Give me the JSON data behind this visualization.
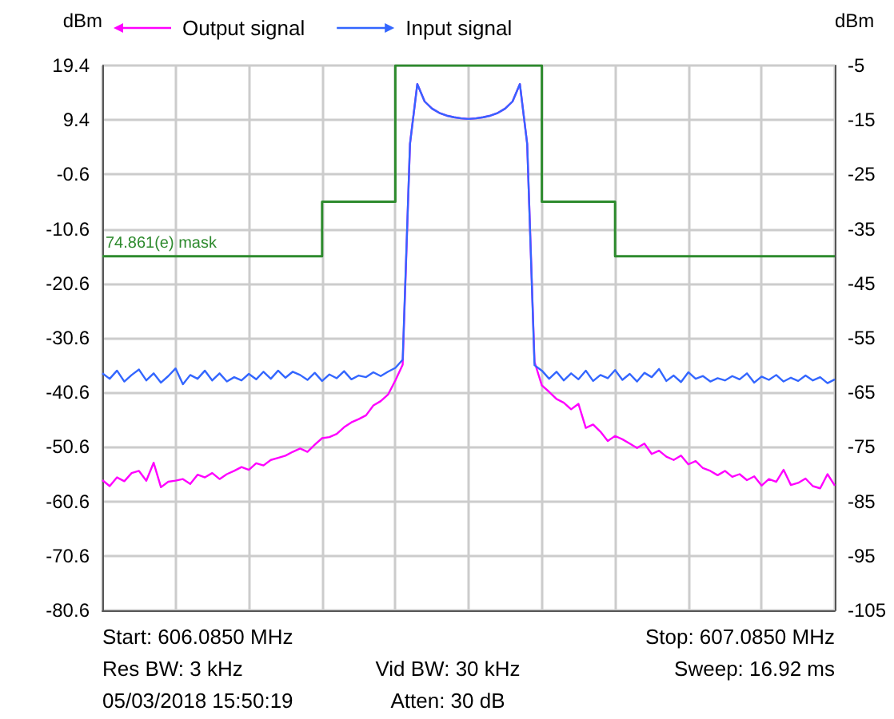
{
  "chart_data": {
    "type": "line",
    "ylabel": "dBm",
    "y2label": "dBm",
    "legend": "top left",
    "grid": true,
    "tick_labels": "y",
    "categories": [
      null,
      null,
      null,
      null,
      null,
      null,
      null,
      null,
      null,
      null,
      null,
      null,
      null,
      null,
      null,
      null,
      null,
      null,
      null,
      null,
      null,
      null,
      null,
      null,
      null,
      null,
      null,
      null,
      null,
      null,
      null,
      null,
      null,
      null,
      null,
      null,
      null,
      null,
      null,
      null,
      null,
      null,
      null,
      null,
      null,
      null,
      null,
      null,
      null,
      null,
      null,
      null,
      null,
      null,
      null,
      null,
      null,
      null,
      null,
      null,
      null,
      null,
      null,
      null,
      null,
      null,
      null,
      null,
      null,
      null,
      null,
      null,
      null,
      null,
      null,
      null,
      null,
      null,
      null,
      null,
      null,
      null,
      null,
      null,
      null,
      null,
      null,
      null,
      null,
      null,
      null,
      null,
      null,
      null,
      null,
      null,
      null,
      null,
      null,
      null,
      null
    ],
    "ylim": [
      -80.6,
      19.4
    ],
    "yticks": [
      19.4,
      9.4,
      -0.6,
      -10.6,
      -20.6,
      -30.6,
      -40.6,
      -50.6,
      -60.6,
      -70.6,
      -80.6
    ],
    "y2lim": [
      -105,
      -5
    ],
    "y2ticks": [
      -5,
      -15,
      -25,
      -35,
      -45,
      -55,
      -65,
      -75,
      -85,
      -95,
      -105
    ],
    "series": [
      {
        "name": "74.861(e) mask",
        "type": "step",
        "axis": "y2",
        "color": "#2e8b2e",
        "values": [
          -40,
          -40,
          -40,
          -40,
          -40,
          -40,
          -40,
          -40,
          -40,
          -40,
          -40,
          -40,
          -40,
          -40,
          -40,
          -40,
          -40,
          -40,
          -40,
          -40,
          -40,
          -40,
          -40,
          -40,
          -40,
          -40,
          -40,
          -40,
          -40,
          -40,
          -30,
          -30,
          -30,
          -30,
          -30,
          -30,
          -30,
          -30,
          -30,
          -30,
          -5,
          -5,
          -5,
          -5,
          -5,
          -5,
          -5,
          -5,
          -5,
          -5,
          -5,
          -5,
          -5,
          -5,
          -5,
          -5,
          -5,
          -5,
          -5,
          -5,
          -30,
          -30,
          -30,
          -30,
          -30,
          -30,
          -30,
          -30,
          -30,
          -30,
          -40,
          -40,
          -40,
          -40,
          -40,
          -40,
          -40,
          -40,
          -40,
          -40,
          -40,
          -40,
          -40,
          -40,
          -40,
          -40,
          -40,
          -40,
          -40,
          -40,
          -40,
          -40,
          -40,
          -40,
          -40,
          -40,
          -40,
          -40,
          -40,
          -40,
          -40
        ]
      },
      {
        "name": "Output signal",
        "type": "line",
        "axis": "y",
        "color": "#ff00ff",
        "values": [
          -56.7,
          -57.8,
          -56.2,
          -56.9,
          -55.4,
          -55.0,
          -56.8,
          -53.5,
          -58.0,
          -57.0,
          -56.8,
          -56.5,
          -57.4,
          -55.7,
          -56.2,
          -55.4,
          -56.5,
          -55.6,
          -55.0,
          -54.3,
          -54.8,
          -53.6,
          -54.0,
          -53.0,
          -52.6,
          -52.2,
          -51.5,
          -50.9,
          -51.5,
          -50.2,
          -49.0,
          -48.8,
          -48.2,
          -47.0,
          -46.1,
          -45.5,
          -44.8,
          -43.0,
          -42.2,
          -41.0,
          -38.4,
          -35.5,
          5.0,
          16.0,
          12.8,
          11.5,
          10.7,
          10.2,
          9.9,
          9.7,
          9.6,
          9.7,
          9.9,
          10.2,
          10.7,
          11.5,
          12.8,
          16.0,
          5.0,
          -35.0,
          -39.3,
          -40.5,
          -41.8,
          -42.5,
          -43.7,
          -42.7,
          -47.1,
          -46.5,
          -47.8,
          -49.5,
          -48.6,
          -49.2,
          -50.0,
          -50.8,
          -50.0,
          -51.9,
          -51.3,
          -52.4,
          -53.0,
          -52.2,
          -53.8,
          -53.2,
          -54.5,
          -55.0,
          -55.8,
          -55.0,
          -56.1,
          -55.6,
          -56.7,
          -56.0,
          -57.7,
          -56.5,
          -57.0,
          -54.8,
          -57.6,
          -57.2,
          -56.4,
          -57.8,
          -58.2,
          -55.6,
          -57.7
        ]
      },
      {
        "name": "Input signal",
        "type": "line",
        "axis": "y2",
        "color": "#3366ff",
        "values": [
          -61.5,
          -62.5,
          -61.0,
          -63.0,
          -61.8,
          -60.8,
          -62.8,
          -61.5,
          -63.2,
          -62.0,
          -60.6,
          -63.5,
          -61.8,
          -62.5,
          -61.0,
          -62.8,
          -61.5,
          -63.0,
          -62.2,
          -62.8,
          -61.6,
          -62.6,
          -61.2,
          -62.5,
          -61.0,
          -62.3,
          -61.2,
          -61.8,
          -62.7,
          -61.4,
          -62.9,
          -61.7,
          -62.4,
          -61.1,
          -62.6,
          -61.9,
          -62.2,
          -61.3,
          -62.0,
          -61.2,
          -60.5,
          -59.0,
          -19.4,
          -8.4,
          -11.6,
          -12.9,
          -13.7,
          -14.2,
          -14.5,
          -14.7,
          -14.8,
          -14.7,
          -14.5,
          -14.2,
          -13.7,
          -12.9,
          -11.6,
          -8.4,
          -19.4,
          -60.0,
          -61.0,
          -62.5,
          -61.2,
          -62.8,
          -61.5,
          -62.6,
          -61.0,
          -62.9,
          -61.8,
          -62.4,
          -60.9,
          -62.7,
          -61.6,
          -63.0,
          -61.4,
          -62.2,
          -60.7,
          -62.9,
          -61.9,
          -63.1,
          -61.3,
          -62.5,
          -62.0,
          -63.0,
          -62.4,
          -62.8,
          -62.0,
          -62.6,
          -61.5,
          -63.2,
          -62.1,
          -62.7,
          -61.8,
          -63.0,
          -62.3,
          -62.9,
          -61.9,
          -62.8,
          -62.2,
          -63.3,
          -62.6
        ]
      }
    ],
    "annotations": [
      "Start: 606.0850 MHz",
      "Stop: 607.0850 MHz",
      "Res BW: 3 kHz",
      "Vid BW: 30 kHz",
      "Sweep: 16.92 ms",
      "05/03/2018 15:50:19",
      "Atten: 30 dB"
    ]
  }
}
